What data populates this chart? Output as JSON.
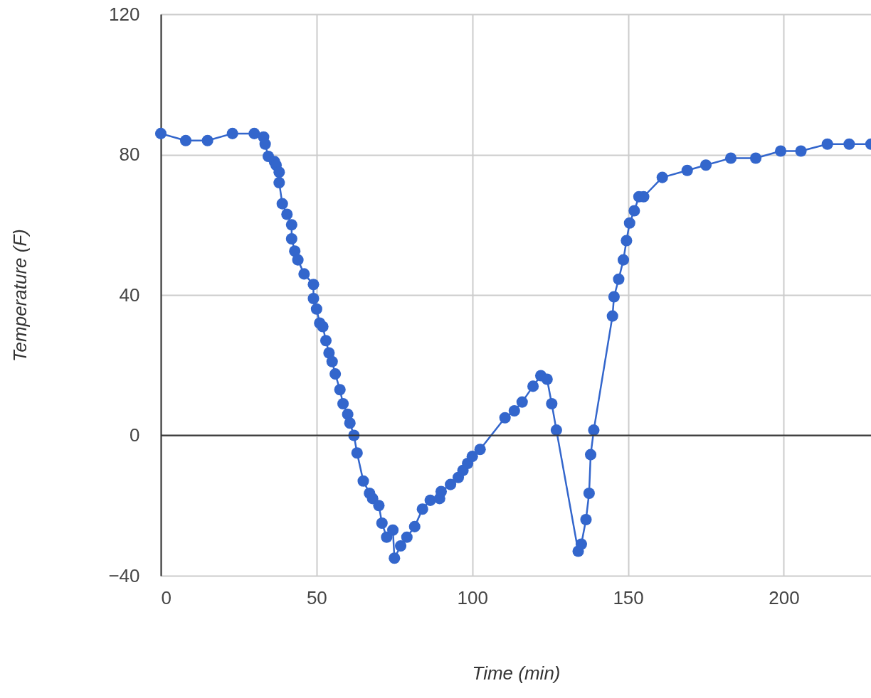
{
  "chart_data": {
    "type": "line",
    "xlabel": "Time (min)",
    "ylabel": "Temperature (F)",
    "xlim": [
      0,
      228
    ],
    "xticks": [
      0,
      50,
      100,
      150,
      200
    ],
    "ylim": [
      -40,
      120
    ],
    "yticks": [
      -40,
      0,
      40,
      80,
      120
    ],
    "grid": true,
    "marker": "circle",
    "line_style": "solid",
    "ref_lines": [
      {
        "axis": "y",
        "value": 0,
        "color": "#333333"
      }
    ],
    "series": [
      {
        "color": "#3366cc",
        "x": [
          0,
          8,
          15,
          23,
          30,
          33,
          33.5,
          34.5,
          36.5,
          37,
          38,
          38,
          39,
          40.5,
          42,
          42,
          43,
          44,
          46,
          49,
          49,
          50,
          51,
          52,
          53,
          54,
          55,
          56,
          57.5,
          58.5,
          60,
          60.7,
          62,
          63,
          65,
          67,
          68,
          70,
          71,
          72.5,
          74.5,
          75,
          77,
          79,
          81.5,
          84,
          86.5,
          89.5,
          90,
          93,
          95.5,
          97,
          98.5,
          100,
          102.5,
          110.5,
          113.5,
          116,
          119.5,
          122,
          124,
          125.5,
          127,
          134,
          135,
          136.5,
          137.5,
          138,
          139,
          145,
          145.5,
          147,
          148.5,
          149.5,
          150.5,
          152,
          153.5,
          155,
          161,
          169,
          175,
          183,
          191,
          199,
          205.5,
          214,
          221,
          228
        ],
        "values": [
          86,
          84,
          84,
          86,
          86,
          85,
          83,
          79.5,
          78,
          77,
          75,
          72,
          66,
          63,
          60,
          56,
          52.5,
          50,
          46,
          43,
          39,
          36,
          32,
          31,
          27,
          23.5,
          21,
          17.5,
          13,
          9,
          6,
          3.5,
          0,
          -5,
          -13,
          -16.5,
          -18,
          -20,
          -25,
          -29,
          -27,
          -35,
          -31.5,
          -29,
          -26,
          -21,
          -18.5,
          -18,
          -16,
          -14,
          -12,
          -10,
          -8,
          -6,
          -4,
          5,
          7,
          9.5,
          14,
          17,
          16,
          9,
          1.5,
          -33,
          -31,
          -24,
          -16.5,
          -5.5,
          1.5,
          34,
          39.5,
          44.5,
          50,
          55.5,
          60.5,
          64,
          68,
          68,
          73.5,
          75.5,
          77,
          79,
          79,
          81,
          81,
          83,
          83,
          83
        ]
      }
    ]
  }
}
